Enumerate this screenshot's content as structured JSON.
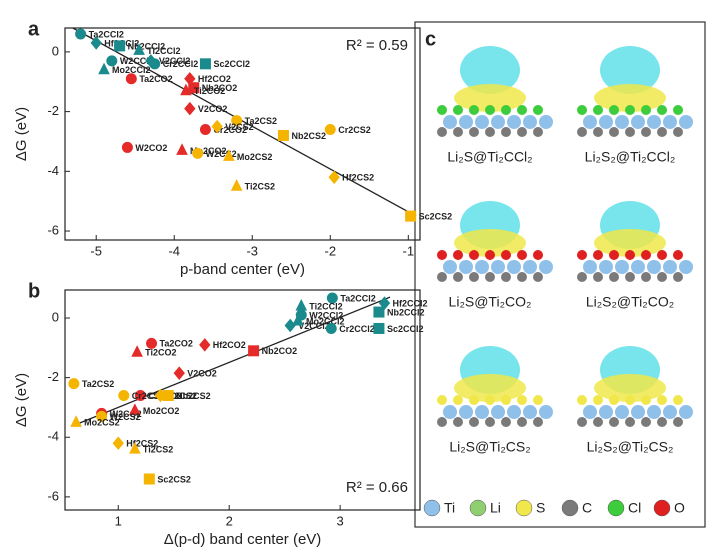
{
  "chart_data": [
    {
      "type": "scatter",
      "panel": "a",
      "xlabel": "p-band center (eV)",
      "ylabel": "ΔG (eV)",
      "annotation": "R² = 0.59",
      "xlim": [
        -5.4,
        -0.85
      ],
      "ylim": [
        -6.3,
        0.8
      ],
      "xticks": [
        -5,
        -4,
        -3,
        -2,
        -1
      ],
      "yticks": [
        0,
        -2,
        -4,
        -6
      ],
      "fit_line": {
        "x": [
          -5.3,
          -0.9
        ],
        "values": [
          0.8,
          -5.5
        ]
      },
      "series": [
        {
          "color": "#1a8a8c",
          "labels": [
            "Ta2CCl2",
            "Hf2CCl2",
            "W2CCl2",
            "Nb2CCl2",
            "Ti2CCl2",
            "V2CCl2",
            "Cr2CCl2",
            "Sc2CCl2",
            "Mo2CCl2"
          ],
          "markers": [
            "circle",
            "diamond",
            "circle",
            "square",
            "triangle",
            "diamond",
            "circle",
            "square",
            "triangle"
          ],
          "x": [
            -5.2,
            -5.0,
            -4.8,
            -4.7,
            -4.45,
            -4.3,
            -4.25,
            -3.6,
            -4.9
          ],
          "values": [
            0.6,
            0.3,
            -0.3,
            0.2,
            0.05,
            -0.3,
            -0.4,
            -0.4,
            -0.6
          ]
        },
        {
          "color": "#e52a2a",
          "labels": [
            "Ta2CO2",
            "Hf2CO2",
            "Nb2CO2",
            "Ti2CO2",
            "V2CO2",
            "Cr2CO2",
            "W2CO2",
            "Mo2CO2"
          ],
          "markers": [
            "circle",
            "diamond",
            "square",
            "triangle",
            "diamond",
            "circle",
            "circle",
            "triangle"
          ],
          "x": [
            -4.55,
            -3.8,
            -3.75,
            -3.85,
            -3.8,
            -3.6,
            -4.6,
            -3.9
          ],
          "values": [
            -0.9,
            -0.9,
            -1.2,
            -1.3,
            -1.9,
            -2.6,
            -3.2,
            -3.3
          ]
        },
        {
          "color": "#f5b400",
          "labels": [
            "W2CS2",
            "Ta2CS2",
            "V2CS2",
            "Mo2CS2",
            "Ti2CS2",
            "Cr2CS2",
            "Nb2CS2",
            "Hf2CS2",
            "Sc2CS2"
          ],
          "markers": [
            "circle",
            "circle",
            "diamond",
            "triangle",
            "triangle",
            "circle",
            "square",
            "diamond",
            "square"
          ],
          "x": [
            -3.7,
            -3.2,
            -3.45,
            -3.3,
            -3.2,
            -2.0,
            -2.6,
            -1.95,
            -0.97
          ],
          "values": [
            -3.4,
            -2.3,
            -2.5,
            -3.5,
            -4.5,
            -2.6,
            -2.8,
            -4.2,
            -5.5
          ]
        }
      ]
    },
    {
      "type": "scatter",
      "panel": "b",
      "xlabel": "Δ(p-d) band center (eV)",
      "ylabel": "ΔG (eV)",
      "annotation": "R² = 0.66",
      "xlim": [
        0.52,
        3.72
      ],
      "ylim": [
        -6.44,
        0.94
      ],
      "xticks": [
        1,
        2,
        3
      ],
      "yticks": [
        0,
        -2,
        -4,
        -6
      ],
      "fit_line": {
        "x": [
          0.6,
          3.45
        ],
        "values": [
          -3.6,
          0.7
        ]
      },
      "series": [
        {
          "color": "#1a8a8c",
          "labels": [
            "Ta2CCl2",
            "Ti2CCl2",
            "W2CCl2",
            "V2CCl2",
            "Mo2CCl2",
            "Cr2CCl2",
            "Hf2CCl2",
            "Nb2CCl2",
            "Sc2CCl2"
          ],
          "markers": [
            "circle",
            "triangle",
            "circle",
            "diamond",
            "triangle",
            "circle",
            "diamond",
            "square",
            "square"
          ],
          "x": [
            2.93,
            2.65,
            2.65,
            2.55,
            2.62,
            2.92,
            3.4,
            3.35,
            3.35
          ],
          "values": [
            0.67,
            0.4,
            0.1,
            -0.25,
            -0.1,
            -0.35,
            0.5,
            0.2,
            -0.35
          ]
        },
        {
          "color": "#e52a2a",
          "labels": [
            "Ta2CO2",
            "Ti2CO2",
            "Hf2CO2",
            "Nb2CO2",
            "V2CO2",
            "Cr2CO2",
            "W2CO2",
            "Mo2CO2"
          ],
          "markers": [
            "circle",
            "triangle",
            "diamond",
            "square",
            "diamond",
            "circle",
            "circle",
            "triangle"
          ],
          "x": [
            1.3,
            1.17,
            1.78,
            2.22,
            1.55,
            1.2,
            0.85,
            1.15
          ],
          "values": [
            -0.85,
            -1.15,
            -0.9,
            -1.1,
            -1.85,
            -2.6,
            -3.2,
            -3.1
          ]
        },
        {
          "color": "#f5b400",
          "labels": [
            "Ta2CS2",
            "Cr2CS2",
            "V2CS2",
            "Nb2CS2",
            "W2CS2",
            "Mo2CS2",
            "Hf2CS2",
            "Ti2CS2",
            "Sc2CS2"
          ],
          "markers": [
            "circle",
            "circle",
            "diamond",
            "square",
            "circle",
            "triangle",
            "diamond",
            "triangle",
            "square"
          ],
          "x": [
            0.6,
            1.05,
            1.38,
            1.45,
            0.85,
            0.62,
            1.0,
            1.15,
            1.28
          ],
          "values": [
            -2.2,
            -2.6,
            -2.6,
            -2.6,
            -3.3,
            -3.5,
            -4.2,
            -4.4,
            -5.4
          ]
        }
      ]
    }
  ],
  "panel_c": {
    "letter": "c",
    "captions": [
      "Li₂S@Ti₂CCl₂",
      "Li₂S₂@Ti₂CCl₂",
      "Li₂S@Ti₂CO₂",
      "Li₂S₂@Ti₂CO₂",
      "Li₂S@Ti₂CS₂",
      "Li₂S₂@Ti₂CS₂"
    ],
    "legend": [
      {
        "name": "Ti",
        "color": "#8ec0ea"
      },
      {
        "name": "Li",
        "color": "#8fcf6f"
      },
      {
        "name": "S",
        "color": "#f0e84a"
      },
      {
        "name": "C",
        "color": "#7a7a7a"
      },
      {
        "name": "Cl",
        "color": "#3ccc3c"
      },
      {
        "name": "O",
        "color": "#e02020"
      }
    ]
  }
}
